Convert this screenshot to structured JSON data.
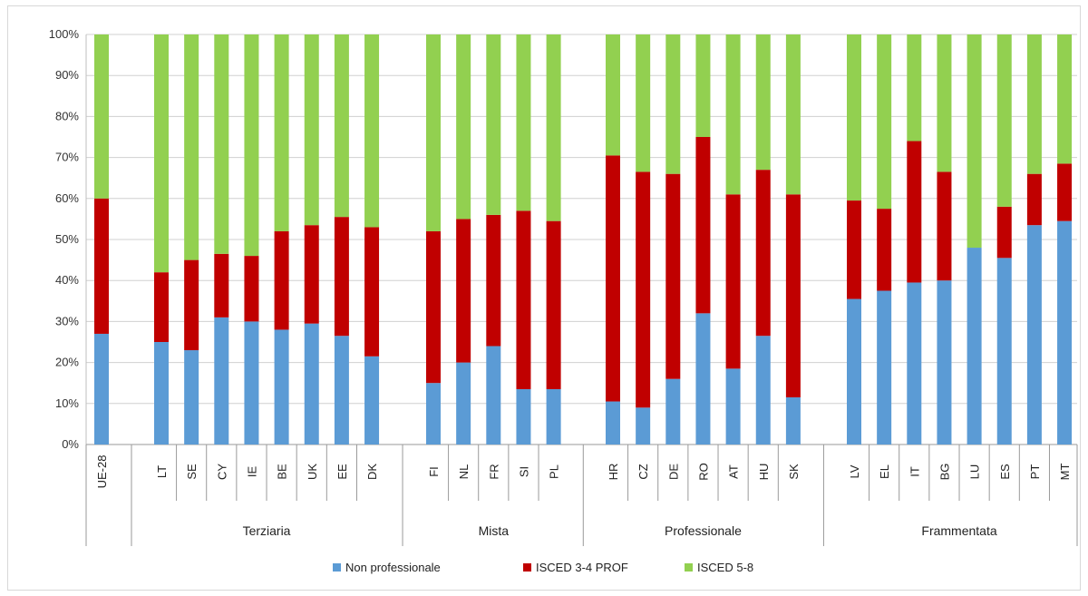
{
  "chart_data": {
    "type": "bar",
    "stacked": true,
    "percent": true,
    "title": "",
    "xlabel": "",
    "ylabel": "",
    "ylim": [
      0,
      100
    ],
    "yticks": [
      "0%",
      "10%",
      "20%",
      "30%",
      "40%",
      "50%",
      "60%",
      "70%",
      "80%",
      "90%",
      "100%"
    ],
    "grid": true,
    "legend_position": "bottom",
    "categories": [
      "UE-28",
      "LT",
      "SE",
      "CY",
      "IE",
      "BE",
      "UK",
      "EE",
      "DK",
      "FI",
      "NL",
      "FR",
      "SI",
      "PL",
      "HR",
      "CZ",
      "DE",
      "RO",
      "AT",
      "HU",
      "SK",
      "LV",
      "EL",
      "IT",
      "BG",
      "LU",
      "ES",
      "PT",
      "MT"
    ],
    "groups": [
      {
        "name": "",
        "categories": [
          "UE-28"
        ]
      },
      {
        "name": "Terziaria",
        "categories": [
          "LT",
          "SE",
          "CY",
          "IE",
          "BE",
          "UK",
          "EE",
          "DK"
        ]
      },
      {
        "name": "Mista",
        "categories": [
          "FI",
          "NL",
          "FR",
          "SI",
          "PL"
        ]
      },
      {
        "name": "Professionale",
        "categories": [
          "HR",
          "CZ",
          "DE",
          "RO",
          "AT",
          "HU",
          "SK"
        ]
      },
      {
        "name": "Frammentata",
        "categories": [
          "LV",
          "EL",
          "IT",
          "BG",
          "LU",
          "ES",
          "PT",
          "MT"
        ]
      }
    ],
    "series": [
      {
        "name": "Non professionale",
        "color": "#5b9bd5",
        "values": [
          27,
          25,
          23,
          31,
          30,
          28,
          29.5,
          26.5,
          21.5,
          15,
          20,
          24,
          13.5,
          13.5,
          10.5,
          9,
          16,
          32,
          18.5,
          26.5,
          11.5,
          35.5,
          37.5,
          39.5,
          40,
          48,
          45.5,
          53.5,
          54.5
        ]
      },
      {
        "name": "ISCED 3-4 PROF",
        "color": "#c00000",
        "values": [
          33,
          17,
          22,
          15.5,
          16,
          24,
          24,
          29,
          31.5,
          37,
          35,
          32,
          43.5,
          41,
          60,
          57.5,
          50,
          43,
          42.5,
          40.5,
          49.5,
          24,
          20,
          34.5,
          26.5,
          0,
          12.5,
          12.5,
          14
        ]
      },
      {
        "name": "ISCED 5-8",
        "color": "#92d050",
        "values": [
          40,
          58,
          55,
          53.5,
          54,
          48,
          46.5,
          44.5,
          47,
          48,
          45,
          44,
          43,
          45.5,
          29.5,
          33.5,
          34,
          25,
          39,
          33,
          39,
          40.5,
          42.5,
          26,
          33.5,
          52,
          42,
          34,
          31.5
        ]
      }
    ]
  }
}
